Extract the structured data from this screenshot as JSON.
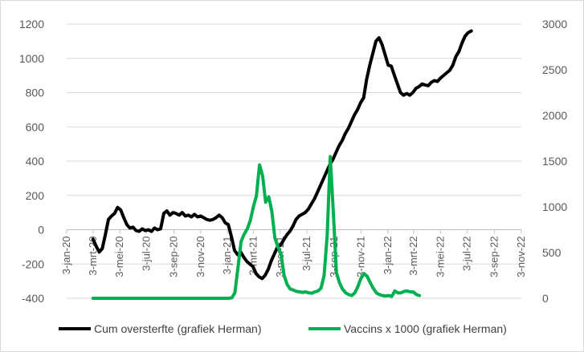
{
  "chart_data": {
    "type": "line",
    "title": "",
    "xlabel": "",
    "ylabel": "",
    "x_axis": {
      "type": "date",
      "range": [
        "2020-01-03",
        "2022-11-03"
      ],
      "ticks": [
        {
          "date": "2020-01-03",
          "label": "3-jan-20"
        },
        {
          "date": "2020-03-03",
          "label": "3-mrt-20"
        },
        {
          "date": "2020-05-03",
          "label": "3-mei-20"
        },
        {
          "date": "2020-07-03",
          "label": "3-jul-20"
        },
        {
          "date": "2020-09-03",
          "label": "3-sep-20"
        },
        {
          "date": "2020-11-03",
          "label": "3-nov-20"
        },
        {
          "date": "2021-01-03",
          "label": "3-jan-21"
        },
        {
          "date": "2021-03-03",
          "label": "3-mrt-21"
        },
        {
          "date": "2021-05-03",
          "label": "3-mei-21"
        },
        {
          "date": "2021-07-03",
          "label": "3-jul-21"
        },
        {
          "date": "2021-09-03",
          "label": "3-sep-21"
        },
        {
          "date": "2021-11-03",
          "label": "3-nov-21"
        },
        {
          "date": "2022-01-03",
          "label": "3-jan-22"
        },
        {
          "date": "2022-03-03",
          "label": "3-mrt-22"
        },
        {
          "date": "2022-05-03",
          "label": "3-mei-22"
        },
        {
          "date": "2022-07-03",
          "label": "3-jul-22"
        },
        {
          "date": "2022-09-03",
          "label": "3-sep-22"
        },
        {
          "date": "2022-11-03",
          "label": "3-nov-22"
        }
      ]
    },
    "y_axis_left": {
      "range": [
        -400,
        1200
      ],
      "ticks": [
        -400,
        -200,
        0,
        200,
        400,
        600,
        800,
        1000,
        1200
      ]
    },
    "y_axis_right": {
      "range": [
        0,
        3000
      ],
      "ticks": [
        0,
        500,
        1000,
        1500,
        2000,
        2500,
        3000
      ]
    },
    "grid": true,
    "legend_position": "bottom",
    "series": [
      {
        "name": "Cum oversterfte (grafiek Herman)",
        "color": "#000000",
        "axis": "left",
        "points": [
          [
            "2020-03-03",
            -55
          ],
          [
            "2020-03-10",
            -95
          ],
          [
            "2020-03-17",
            -130
          ],
          [
            "2020-03-24",
            -110
          ],
          [
            "2020-03-31",
            -30
          ],
          [
            "2020-04-07",
            60
          ],
          [
            "2020-04-14",
            80
          ],
          [
            "2020-04-21",
            95
          ],
          [
            "2020-04-28",
            130
          ],
          [
            "2020-05-05",
            115
          ],
          [
            "2020-05-12",
            70
          ],
          [
            "2020-05-19",
            30
          ],
          [
            "2020-05-26",
            10
          ],
          [
            "2020-06-02",
            15
          ],
          [
            "2020-06-09",
            -5
          ],
          [
            "2020-06-16",
            -10
          ],
          [
            "2020-06-23",
            5
          ],
          [
            "2020-06-30",
            -5
          ],
          [
            "2020-07-07",
            0
          ],
          [
            "2020-07-14",
            -10
          ],
          [
            "2020-07-21",
            10
          ],
          [
            "2020-07-28",
            0
          ],
          [
            "2020-08-04",
            5
          ],
          [
            "2020-08-11",
            95
          ],
          [
            "2020-08-18",
            110
          ],
          [
            "2020-08-25",
            85
          ],
          [
            "2020-09-01",
            100
          ],
          [
            "2020-09-08",
            95
          ],
          [
            "2020-09-15",
            85
          ],
          [
            "2020-09-22",
            100
          ],
          [
            "2020-09-29",
            80
          ],
          [
            "2020-10-06",
            85
          ],
          [
            "2020-10-13",
            75
          ],
          [
            "2020-10-20",
            90
          ],
          [
            "2020-10-27",
            75
          ],
          [
            "2020-11-03",
            80
          ],
          [
            "2020-11-10",
            70
          ],
          [
            "2020-11-17",
            60
          ],
          [
            "2020-11-24",
            55
          ],
          [
            "2020-12-01",
            60
          ],
          [
            "2020-12-08",
            70
          ],
          [
            "2020-12-15",
            85
          ],
          [
            "2020-12-22",
            70
          ],
          [
            "2020-12-29",
            40
          ],
          [
            "2021-01-05",
            30
          ],
          [
            "2021-01-12",
            -40
          ],
          [
            "2021-01-19",
            -120
          ],
          [
            "2021-01-26",
            -145
          ],
          [
            "2021-02-02",
            -130
          ],
          [
            "2021-02-09",
            -160
          ],
          [
            "2021-02-16",
            -185
          ],
          [
            "2021-02-23",
            -200
          ],
          [
            "2021-03-02",
            -215
          ],
          [
            "2021-03-09",
            -255
          ],
          [
            "2021-03-16",
            -275
          ],
          [
            "2021-03-23",
            -285
          ],
          [
            "2021-03-30",
            -265
          ],
          [
            "2021-04-06",
            -230
          ],
          [
            "2021-04-13",
            -180
          ],
          [
            "2021-04-20",
            -140
          ],
          [
            "2021-04-27",
            -100
          ],
          [
            "2021-05-04",
            -90
          ],
          [
            "2021-05-11",
            -60
          ],
          [
            "2021-05-18",
            -30
          ],
          [
            "2021-05-25",
            -10
          ],
          [
            "2021-06-01",
            20
          ],
          [
            "2021-06-08",
            60
          ],
          [
            "2021-06-15",
            80
          ],
          [
            "2021-06-22",
            90
          ],
          [
            "2021-06-29",
            100
          ],
          [
            "2021-07-06",
            120
          ],
          [
            "2021-07-13",
            150
          ],
          [
            "2021-07-20",
            180
          ],
          [
            "2021-07-27",
            220
          ],
          [
            "2021-08-03",
            260
          ],
          [
            "2021-08-10",
            300
          ],
          [
            "2021-08-17",
            340
          ],
          [
            "2021-08-24",
            380
          ],
          [
            "2021-08-31",
            410
          ],
          [
            "2021-09-07",
            450
          ],
          [
            "2021-09-14",
            490
          ],
          [
            "2021-09-21",
            520
          ],
          [
            "2021-09-28",
            560
          ],
          [
            "2021-10-05",
            590
          ],
          [
            "2021-10-12",
            630
          ],
          [
            "2021-10-19",
            670
          ],
          [
            "2021-10-26",
            700
          ],
          [
            "2021-11-02",
            740
          ],
          [
            "2021-11-09",
            770
          ],
          [
            "2021-11-16",
            880
          ],
          [
            "2021-11-23",
            960
          ],
          [
            "2021-11-30",
            1030
          ],
          [
            "2021-12-07",
            1100
          ],
          [
            "2021-12-14",
            1120
          ],
          [
            "2021-12-21",
            1080
          ],
          [
            "2021-12-28",
            1020
          ],
          [
            "2022-01-04",
            960
          ],
          [
            "2022-01-11",
            955
          ],
          [
            "2022-01-18",
            900
          ],
          [
            "2022-01-25",
            850
          ],
          [
            "2022-02-01",
            800
          ],
          [
            "2022-02-08",
            785
          ],
          [
            "2022-02-15",
            795
          ],
          [
            "2022-02-22",
            785
          ],
          [
            "2022-03-01",
            800
          ],
          [
            "2022-03-08",
            825
          ],
          [
            "2022-03-15",
            835
          ],
          [
            "2022-03-22",
            850
          ],
          [
            "2022-03-29",
            845
          ],
          [
            "2022-04-05",
            840
          ],
          [
            "2022-04-12",
            860
          ],
          [
            "2022-04-19",
            870
          ],
          [
            "2022-04-26",
            865
          ],
          [
            "2022-05-03",
            885
          ],
          [
            "2022-05-10",
            900
          ],
          [
            "2022-05-17",
            915
          ],
          [
            "2022-05-24",
            930
          ],
          [
            "2022-05-31",
            960
          ],
          [
            "2022-06-07",
            1010
          ],
          [
            "2022-06-14",
            1040
          ],
          [
            "2022-06-21",
            1090
          ],
          [
            "2022-06-28",
            1130
          ],
          [
            "2022-07-05",
            1150
          ],
          [
            "2022-07-12",
            1160
          ]
        ]
      },
      {
        "name": "Vaccins x 1000 (grafiek Herman)",
        "color": "#00b050",
        "axis": "right",
        "points": [
          [
            "2020-03-03",
            0
          ],
          [
            "2021-01-06",
            0
          ],
          [
            "2021-01-13",
            5
          ],
          [
            "2021-01-20",
            60
          ],
          [
            "2021-01-27",
            340
          ],
          [
            "2021-02-03",
            620
          ],
          [
            "2021-02-10",
            700
          ],
          [
            "2021-02-17",
            760
          ],
          [
            "2021-02-24",
            850
          ],
          [
            "2021-03-03",
            1000
          ],
          [
            "2021-03-10",
            1120
          ],
          [
            "2021-03-17",
            1460
          ],
          [
            "2021-03-24",
            1340
          ],
          [
            "2021-03-31",
            1050
          ],
          [
            "2021-04-07",
            1110
          ],
          [
            "2021-04-14",
            950
          ],
          [
            "2021-04-21",
            660
          ],
          [
            "2021-04-28",
            560
          ],
          [
            "2021-05-05",
            480
          ],
          [
            "2021-05-12",
            250
          ],
          [
            "2021-05-19",
            150
          ],
          [
            "2021-05-26",
            100
          ],
          [
            "2021-06-02",
            90
          ],
          [
            "2021-06-09",
            75
          ],
          [
            "2021-06-16",
            70
          ],
          [
            "2021-06-23",
            65
          ],
          [
            "2021-06-30",
            70
          ],
          [
            "2021-07-07",
            60
          ],
          [
            "2021-07-14",
            55
          ],
          [
            "2021-07-21",
            70
          ],
          [
            "2021-07-28",
            80
          ],
          [
            "2021-08-04",
            110
          ],
          [
            "2021-08-11",
            250
          ],
          [
            "2021-08-18",
            690
          ],
          [
            "2021-08-25",
            1550
          ],
          [
            "2021-09-01",
            950
          ],
          [
            "2021-09-08",
            280
          ],
          [
            "2021-09-15",
            170
          ],
          [
            "2021-09-22",
            100
          ],
          [
            "2021-09-29",
            60
          ],
          [
            "2021-10-06",
            40
          ],
          [
            "2021-10-13",
            30
          ],
          [
            "2021-10-20",
            60
          ],
          [
            "2021-10-27",
            130
          ],
          [
            "2021-11-03",
            220
          ],
          [
            "2021-11-10",
            270
          ],
          [
            "2021-11-17",
            240
          ],
          [
            "2021-11-24",
            170
          ],
          [
            "2021-12-01",
            110
          ],
          [
            "2021-12-08",
            60
          ],
          [
            "2021-12-15",
            40
          ],
          [
            "2021-12-22",
            30
          ],
          [
            "2021-12-29",
            25
          ],
          [
            "2022-01-05",
            30
          ],
          [
            "2022-01-12",
            20
          ],
          [
            "2022-01-19",
            80
          ],
          [
            "2022-01-26",
            60
          ],
          [
            "2022-02-02",
            60
          ],
          [
            "2022-02-09",
            75
          ],
          [
            "2022-02-16",
            80
          ],
          [
            "2022-02-23",
            70
          ],
          [
            "2022-03-02",
            70
          ],
          [
            "2022-03-09",
            40
          ],
          [
            "2022-03-16",
            30
          ]
        ]
      }
    ]
  }
}
